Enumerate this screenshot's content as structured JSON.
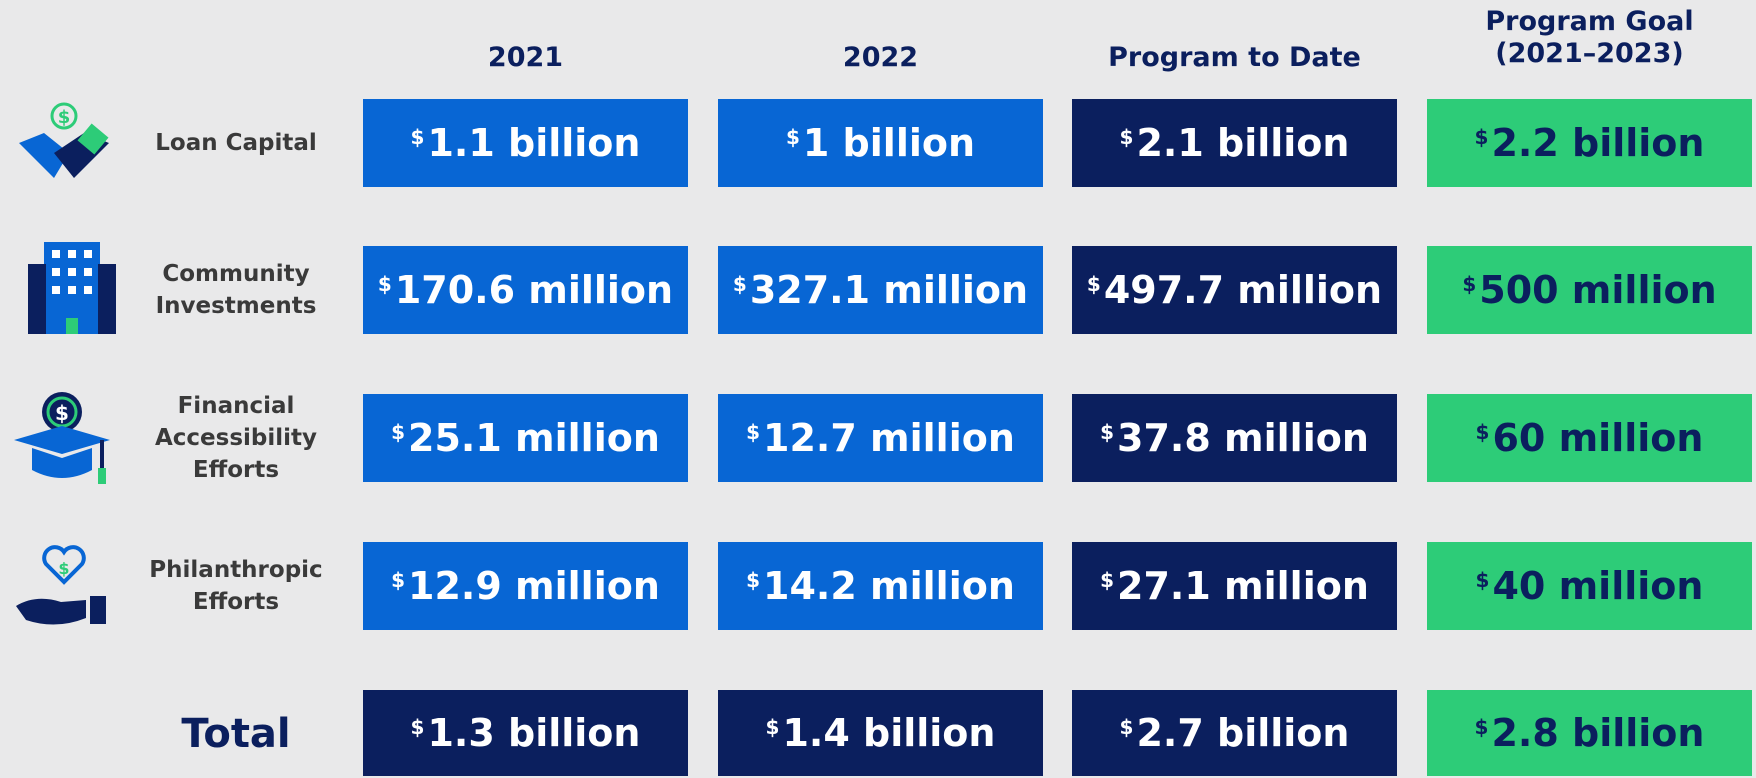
{
  "columns": [
    [
      "2021"
    ],
    [
      "2022"
    ],
    [
      "Program to Date"
    ],
    [
      "Program Goal",
      "(2021–2023)"
    ]
  ],
  "rows": [
    {
      "label": [
        "Loan Capital"
      ],
      "cells": [
        {
          "symbol": "$",
          "amount": "1.1 billion"
        },
        {
          "symbol": "$",
          "amount": "1 billion"
        },
        {
          "symbol": "$",
          "amount": "2.1 billion"
        },
        {
          "symbol": "$",
          "amount": "2.2 billion"
        }
      ]
    },
    {
      "label": [
        "Community",
        "Investments"
      ],
      "cells": [
        {
          "symbol": "$",
          "amount": "170.6 million"
        },
        {
          "symbol": "$",
          "amount": "327.1 million"
        },
        {
          "symbol": "$",
          "amount": "497.7 million"
        },
        {
          "symbol": "$",
          "amount": "500 million"
        }
      ]
    },
    {
      "label": [
        "Financial",
        "Accessibility",
        "Efforts"
      ],
      "cells": [
        {
          "symbol": "$",
          "amount": "25.1 million"
        },
        {
          "symbol": "$",
          "amount": "12.7 million"
        },
        {
          "symbol": "$",
          "amount": "37.8 million"
        },
        {
          "symbol": "$",
          "amount": "60 million"
        }
      ]
    },
    {
      "label": [
        "Philanthropic",
        "Efforts"
      ],
      "cells": [
        {
          "symbol": "$",
          "amount": "12.9 million"
        },
        {
          "symbol": "$",
          "amount": "14.2 million"
        },
        {
          "symbol": "$",
          "amount": "27.1 million"
        },
        {
          "symbol": "$",
          "amount": "40 million"
        }
      ]
    }
  ],
  "total_row": {
    "label": [
      "Total"
    ],
    "cells": [
      {
        "symbol": "$",
        "amount": "1.3 billion"
      },
      {
        "symbol": "$",
        "amount": "1.4 billion"
      },
      {
        "symbol": "$",
        "amount": "2.7 billion"
      },
      {
        "symbol": "$",
        "amount": "2.8 billion"
      }
    ]
  }
}
